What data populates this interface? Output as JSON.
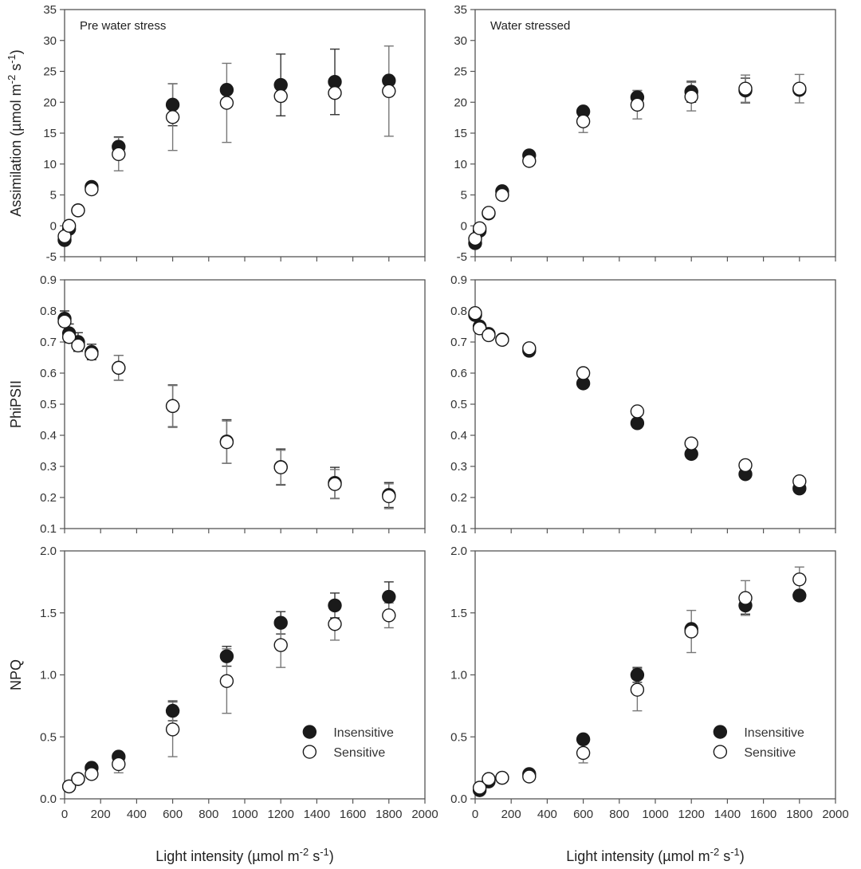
{
  "chart_data": [
    {
      "type": "scatter",
      "panel": "top-left",
      "title": "Pre water stress",
      "xlabel": "",
      "ylabel": "Assimilation (µmol m-2 s-1)",
      "ylabel_parts": {
        "main": "Assimilation (",
        "mu": "µ",
        "unit": "mol m",
        "sup1": "-2",
        "mid": " s",
        "sup2": "-1",
        "end": ")"
      },
      "xlim": [
        0,
        2000
      ],
      "ylim": [
        -5,
        35
      ],
      "xticks": [
        "0",
        "200",
        "400",
        "600",
        "800",
        "1000",
        "1200",
        "1400",
        "1600",
        "1800",
        "2000"
      ],
      "yticks": [
        "-5",
        "0",
        "5",
        "10",
        "15",
        "20",
        "25",
        "30",
        "35"
      ],
      "yticks_values": [
        -5,
        0,
        5,
        10,
        15,
        20,
        25,
        30,
        35
      ],
      "show_xtick_labels": false,
      "x": [
        0,
        25,
        75,
        150,
        300,
        600,
        900,
        1200,
        1500,
        1800
      ],
      "series": [
        {
          "name": "Insensitive",
          "filled": true,
          "values": [
            -2.3,
            -0.5,
            2.5,
            6.3,
            12.8,
            19.6,
            22.0,
            22.8,
            23.3,
            23.5
          ],
          "err": [
            0.3,
            0.3,
            0.2,
            0.5,
            1.6,
            3.4,
            0.5,
            5.0,
            5.3,
            0.3
          ]
        },
        {
          "name": "Sensitive",
          "filled": false,
          "values": [
            -1.7,
            0.0,
            2.5,
            5.9,
            11.6,
            17.6,
            19.9,
            21.0,
            21.5,
            21.8
          ],
          "err": [
            0.3,
            0.3,
            0.2,
            0.9,
            2.7,
            5.4,
            6.4,
            0.5,
            0.5,
            7.3
          ]
        }
      ]
    },
    {
      "type": "scatter",
      "panel": "top-right",
      "title": "Water stressed",
      "xlabel": "",
      "ylabel": "",
      "xlim": [
        0,
        2000
      ],
      "ylim": [
        -5,
        35
      ],
      "xticks": [
        "0",
        "200",
        "400",
        "600",
        "800",
        "1000",
        "1200",
        "1400",
        "1600",
        "1800",
        "2000"
      ],
      "yticks": [
        "-5",
        "0",
        "5",
        "10",
        "15",
        "20",
        "25",
        "30",
        "35"
      ],
      "yticks_values": [
        -5,
        0,
        5,
        10,
        15,
        20,
        25,
        30,
        35
      ],
      "show_xtick_labels": false,
      "x": [
        0,
        25,
        75,
        150,
        300,
        600,
        900,
        1200,
        1500,
        1800
      ],
      "series": [
        {
          "name": "Insensitive",
          "filled": true,
          "values": [
            -2.8,
            -0.8,
            2.0,
            5.6,
            11.4,
            18.5,
            20.8,
            21.7,
            21.9,
            22.0
          ],
          "err": [
            0.3,
            0.3,
            0.3,
            0.4,
            0.4,
            0.4,
            1.1,
            1.7,
            2.0,
            0.3
          ]
        },
        {
          "name": "Sensitive",
          "filled": false,
          "values": [
            -2.1,
            -0.4,
            2.1,
            5.0,
            10.5,
            16.9,
            19.6,
            20.9,
            22.2,
            22.2
          ],
          "err": [
            0.3,
            0.3,
            0.3,
            0.4,
            0.7,
            1.8,
            2.3,
            2.3,
            2.2,
            2.3
          ]
        }
      ]
    },
    {
      "type": "scatter",
      "panel": "middle-left",
      "title": "",
      "xlabel": "",
      "ylabel": "PhiPSII",
      "xlim": [
        0,
        2000
      ],
      "ylim": [
        0.1,
        0.9
      ],
      "xticks": [
        "0",
        "200",
        "400",
        "600",
        "800",
        "1000",
        "1200",
        "1400",
        "1600",
        "1800",
        "2000"
      ],
      "yticks": [
        "0.1",
        "0.2",
        "0.3",
        "0.4",
        "0.5",
        "0.6",
        "0.7",
        "0.8",
        "0.9"
      ],
      "yticks_values": [
        0.1,
        0.2,
        0.3,
        0.4,
        0.5,
        0.6,
        0.7,
        0.8,
        0.9
      ],
      "show_xtick_labels": false,
      "x": [
        0,
        25,
        75,
        150,
        300,
        600,
        900,
        1200,
        1500,
        1800
      ],
      "series": [
        {
          "name": "Insensitive",
          "filled": true,
          "values": [
            0.775,
            0.728,
            0.7,
            0.668,
            0.617,
            0.494,
            0.38,
            0.298,
            0.247,
            0.208
          ],
          "err": [
            0.025,
            0.03,
            0.03,
            0.025,
            0.04,
            0.068,
            0.07,
            0.058,
            0.05,
            0.04
          ]
        },
        {
          "name": "Sensitive",
          "filled": false,
          "values": [
            0.766,
            0.716,
            0.689,
            0.662,
            0.617,
            0.494,
            0.378,
            0.297,
            0.243,
            0.204
          ],
          "err": [
            0.02,
            0.02,
            0.02,
            0.02,
            0.04,
            0.066,
            0.068,
            0.055,
            0.047,
            0.04
          ]
        }
      ]
    },
    {
      "type": "scatter",
      "panel": "middle-right",
      "title": "",
      "xlabel": "",
      "ylabel": "",
      "xlim": [
        0,
        2000
      ],
      "ylim": [
        0.1,
        0.9
      ],
      "xticks": [
        "0",
        "200",
        "400",
        "600",
        "800",
        "1000",
        "1200",
        "1400",
        "1600",
        "1800",
        "2000"
      ],
      "yticks": [
        "0.1",
        "0.2",
        "0.3",
        "0.4",
        "0.5",
        "0.6",
        "0.7",
        "0.8",
        "0.9"
      ],
      "yticks_values": [
        0.1,
        0.2,
        0.3,
        0.4,
        0.5,
        0.6,
        0.7,
        0.8,
        0.9
      ],
      "show_xtick_labels": false,
      "x": [
        0,
        25,
        75,
        150,
        300,
        600,
        900,
        1200,
        1500,
        1800
      ],
      "series": [
        {
          "name": "Insensitive",
          "filled": true,
          "values": [
            0.787,
            0.75,
            0.726,
            0.708,
            0.672,
            0.567,
            0.439,
            0.34,
            0.275,
            0.229
          ],
          "err": [
            0.005,
            0.005,
            0.005,
            0.005,
            0.005,
            0.005,
            0.005,
            0.005,
            0.005,
            0.005
          ]
        },
        {
          "name": "Sensitive",
          "filled": false,
          "values": [
            0.793,
            0.744,
            0.722,
            0.707,
            0.68,
            0.6,
            0.477,
            0.374,
            0.304,
            0.252
          ],
          "err": [
            0.005,
            0.005,
            0.005,
            0.005,
            0.008,
            0.005,
            0.018,
            0.02,
            0.008,
            0.005
          ]
        }
      ]
    },
    {
      "type": "scatter",
      "panel": "bottom-left",
      "title": "",
      "xlabel": "Light intensity (µmol m-2 s-1)",
      "xlabel_parts": {
        "main": "Light intensity (",
        "mu": "µ",
        "unit": "mol m",
        "sup1": "-2",
        "mid": " s",
        "sup2": "-1",
        "end": ")"
      },
      "ylabel": "NPQ",
      "xlim": [
        0,
        2000
      ],
      "ylim": [
        0.0,
        2.0
      ],
      "xticks": [
        "0",
        "200",
        "400",
        "600",
        "800",
        "1000",
        "1200",
        "1400",
        "1600",
        "1800",
        "2000"
      ],
      "yticks": [
        "0.0",
        "0.5",
        "1.0",
        "1.5",
        "2.0"
      ],
      "yticks_values": [
        0.0,
        0.5,
        1.0,
        1.5,
        2.0
      ],
      "show_xtick_labels": true,
      "legend": {
        "position": "lower-right",
        "entries": [
          "Insensitive",
          "Sensitive"
        ]
      },
      "x": [
        25,
        75,
        150,
        300,
        600,
        900,
        1200,
        1500,
        1800
      ],
      "series": [
        {
          "name": "Insensitive",
          "filled": true,
          "values": [
            0.1,
            0.16,
            0.25,
            0.34,
            0.71,
            1.15,
            1.42,
            1.56,
            1.63
          ],
          "err": [
            0.01,
            0.01,
            0.02,
            0.05,
            0.08,
            0.08,
            0.09,
            0.1,
            0.12
          ]
        },
        {
          "name": "Sensitive",
          "filled": false,
          "values": [
            0.1,
            0.16,
            0.2,
            0.28,
            0.56,
            0.95,
            1.24,
            1.41,
            1.48
          ],
          "err": [
            0.01,
            0.01,
            0.02,
            0.07,
            0.22,
            0.26,
            0.18,
            0.13,
            0.1
          ]
        }
      ]
    },
    {
      "type": "scatter",
      "panel": "bottom-right",
      "title": "",
      "xlabel": "Light intensity (µmol m-2 s-1)",
      "xlabel_parts": {
        "main": "Light intensity (",
        "mu": "µ",
        "unit": "mol m",
        "sup1": "-2",
        "mid": " s",
        "sup2": "-1",
        "end": ")"
      },
      "ylabel": "",
      "xlim": [
        0,
        2000
      ],
      "ylim": [
        0.0,
        2.0
      ],
      "xticks": [
        "0",
        "200",
        "400",
        "600",
        "800",
        "1000",
        "1200",
        "1400",
        "1600",
        "1800",
        "2000"
      ],
      "yticks": [
        "0.0",
        "0.5",
        "1.0",
        "1.5",
        "2.0"
      ],
      "yticks_values": [
        0.0,
        0.5,
        1.0,
        1.5,
        2.0
      ],
      "show_xtick_labels": true,
      "legend": {
        "position": "lower-right",
        "entries": [
          "Insensitive",
          "Sensitive"
        ]
      },
      "x": [
        25,
        75,
        150,
        300,
        600,
        900,
        1200,
        1500,
        1800
      ],
      "series": [
        {
          "name": "Insensitive",
          "filled": true,
          "values": [
            0.07,
            0.14,
            0.17,
            0.2,
            0.48,
            1.0,
            1.37,
            1.56,
            1.64
          ],
          "err": [
            0.01,
            0.01,
            0.01,
            0.01,
            0.02,
            0.06,
            0.02,
            0.07,
            0.02
          ]
        },
        {
          "name": "Sensitive",
          "filled": false,
          "values": [
            0.09,
            0.16,
            0.17,
            0.18,
            0.37,
            0.88,
            1.35,
            1.62,
            1.77
          ],
          "err": [
            0.01,
            0.01,
            0.01,
            0.01,
            0.08,
            0.17,
            0.17,
            0.14,
            0.1
          ]
        }
      ]
    }
  ],
  "colors": {
    "axis": "#555555",
    "marker_fill": "#1a1a1a",
    "marker_open_fill": "#ffffff",
    "marker_stroke": "#1a1a1a",
    "errbar_dark": "#333333",
    "errbar_light": "#777777"
  }
}
